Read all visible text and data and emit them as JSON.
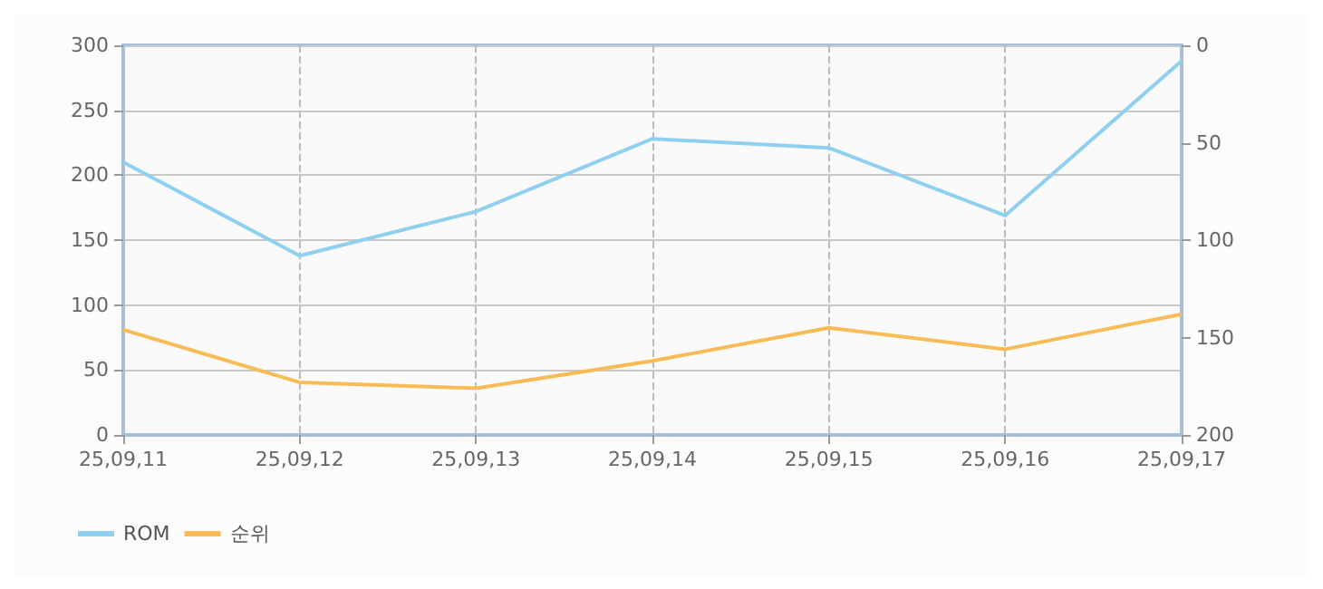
{
  "chart_data": {
    "type": "line",
    "categories": [
      "25,09,11",
      "25,09,12",
      "25,09,13",
      "25,09,14",
      "25,09,15",
      "25,09,16",
      "25,09,17"
    ],
    "series": [
      {
        "name": "ROM",
        "color": "#8fd0f0",
        "values": [
          210,
          138,
          172,
          228,
          221,
          169,
          288
        ]
      },
      {
        "name": "순위",
        "color": "#f9bb55",
        "axis": "y2",
        "values": [
          146,
          173,
          176,
          162,
          145,
          156,
          138
        ]
      }
    ],
    "ylim": [
      0,
      300
    ],
    "yticks": [
      0,
      50,
      100,
      150,
      200,
      250,
      300
    ],
    "y2lim": [
      200,
      0
    ],
    "y2ticks": [
      0,
      50,
      100,
      150,
      200
    ],
    "grid": true,
    "legend": "bottom left",
    "marker": "none",
    "line_style": "solid"
  }
}
